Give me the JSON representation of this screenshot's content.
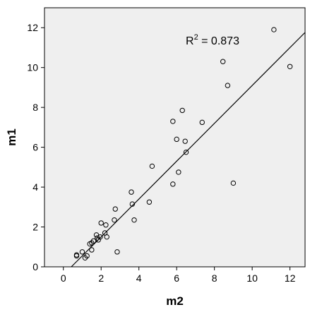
{
  "chart_data": {
    "type": "scatter",
    "xlabel": "m2",
    "ylabel": "m1",
    "xlim": [
      -1,
      12.8
    ],
    "ylim": [
      0,
      13
    ],
    "xticks": [
      0,
      2,
      4,
      6,
      8,
      10,
      12
    ],
    "yticks": [
      0,
      2,
      4,
      6,
      8,
      10,
      12
    ],
    "grid": false,
    "plot_background": "#efefef",
    "marker_color": "#000000",
    "fit_line": {
      "slope": 0.95,
      "intercept": -0.4
    },
    "annotation": {
      "base": "R",
      "superscript": "2",
      "suffix": " = 0.873"
    },
    "points": [
      [
        0.7,
        0.6
      ],
      [
        0.7,
        0.55
      ],
      [
        1.0,
        0.75
      ],
      [
        1.15,
        0.45
      ],
      [
        1.25,
        0.55
      ],
      [
        1.4,
        1.15
      ],
      [
        1.5,
        1.2
      ],
      [
        1.5,
        0.85
      ],
      [
        1.6,
        1.3
      ],
      [
        1.75,
        1.6
      ],
      [
        1.8,
        1.45
      ],
      [
        1.85,
        1.35
      ],
      [
        1.95,
        1.5
      ],
      [
        2.0,
        2.2
      ],
      [
        2.2,
        1.7
      ],
      [
        2.25,
        2.1
      ],
      [
        2.3,
        1.5
      ],
      [
        2.7,
        2.35
      ],
      [
        2.75,
        2.9
      ],
      [
        2.85,
        0.75
      ],
      [
        3.6,
        3.75
      ],
      [
        3.65,
        3.15
      ],
      [
        3.75,
        2.35
      ],
      [
        4.55,
        3.25
      ],
      [
        4.7,
        5.05
      ],
      [
        5.8,
        7.3
      ],
      [
        5.8,
        4.15
      ],
      [
        6.0,
        6.4
      ],
      [
        6.1,
        4.75
      ],
      [
        6.3,
        7.85
      ],
      [
        6.45,
        6.3
      ],
      [
        6.5,
        5.75
      ],
      [
        7.35,
        7.25
      ],
      [
        8.45,
        10.3
      ],
      [
        8.7,
        9.1
      ],
      [
        9.0,
        4.2
      ],
      [
        11.15,
        11.9
      ],
      [
        12.0,
        10.05
      ]
    ]
  }
}
